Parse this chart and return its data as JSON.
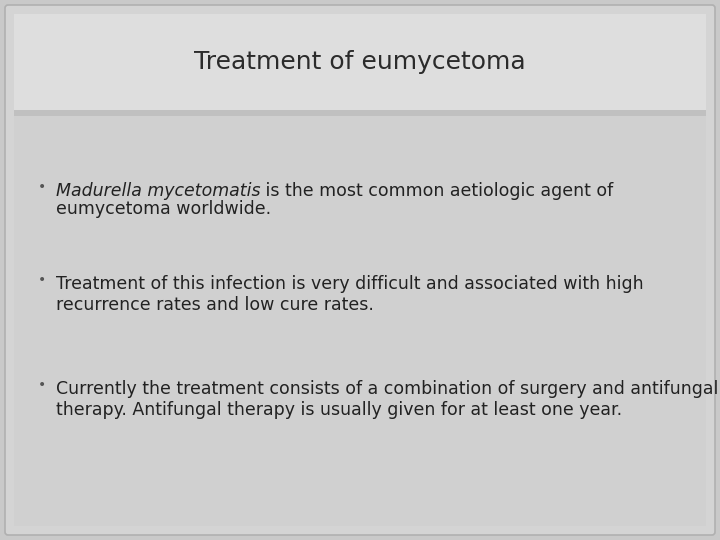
{
  "title": "Treatment of eumycetoma",
  "title_fontsize": 18,
  "title_color": "#2b2b2b",
  "outer_bg": "#c9c9c9",
  "slide_face": "#d4d4d4",
  "title_box_face": "#dedede",
  "content_face": "#d0d0d0",
  "separator_face": "#c0c0c0",
  "text_color": "#222222",
  "bullet_color": "#555555",
  "bullet_points": [
    {
      "italic_part": "Madurella mycetomatis",
      "normal_part": " is the most common aetiologic agent of\neumycetoma worldwide.",
      "has_italic": true
    },
    {
      "italic_part": "",
      "normal_part": "Treatment of this infection is very difficult and associated with high\nrecurrence rates and low cure rates.",
      "has_italic": false
    },
    {
      "italic_part": "",
      "normal_part": "Currently the treatment consists of a combination of surgery and antifungal\ntherapy. Antifungal therapy is usually given for at least one year.",
      "has_italic": false
    }
  ],
  "content_fontsize": 12.5
}
